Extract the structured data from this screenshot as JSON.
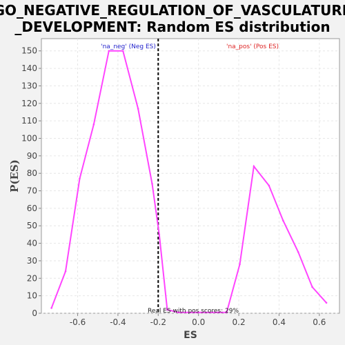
{
  "chart_data": {
    "type": "line",
    "title_line1": "GO_NEGATIVE_REGULATION_OF_VASCULATURE",
    "title_line2": "_DEVELOPMENT: Random ES distribution",
    "xlabel": "ES",
    "ylabel": "P(ES)",
    "xlim": [
      -0.78,
      0.7
    ],
    "ylim": [
      0,
      157
    ],
    "xticks": [
      "-0.6",
      "-0.4",
      "-0.2",
      "0.0",
      "0.2",
      "0.4",
      "0.6"
    ],
    "xtick_values": [
      -0.6,
      -0.4,
      -0.2,
      0.0,
      0.2,
      0.4,
      0.6
    ],
    "yticks": [
      "0",
      "10",
      "20",
      "30",
      "40",
      "50",
      "60",
      "70",
      "80",
      "90",
      "100",
      "110",
      "120",
      "130",
      "140",
      "150"
    ],
    "ytick_values": [
      0,
      10,
      20,
      30,
      40,
      50,
      60,
      70,
      80,
      90,
      100,
      110,
      120,
      130,
      140,
      150
    ],
    "grid": true,
    "series_color": "#ff44ff",
    "series": [
      {
        "x": [
          -0.73,
          -0.66,
          -0.59,
          -0.52,
          -0.445,
          -0.375,
          -0.3,
          -0.23,
          -0.195,
          -0.155,
          -0.1,
          0.0,
          0.1,
          0.14,
          0.205,
          0.275,
          0.35,
          0.42,
          0.495,
          0.565,
          0.635
        ],
        "y": [
          3,
          24,
          77,
          108,
          150,
          150,
          117,
          74,
          45,
          2,
          0.5,
          0.5,
          0.5,
          0.5,
          28,
          84,
          73,
          53,
          35,
          15,
          6
        ]
      }
    ],
    "threshold_x": -0.2,
    "threshold_color": "#000000",
    "annotations": {
      "neg_label": "'na_neg' (Neg ES)",
      "neg_color": "#2222cc",
      "pos_label": "'na_pos' (Pos ES)",
      "pos_color": "#dd2222",
      "note": "Real ES with pos scores: 29%"
    }
  }
}
